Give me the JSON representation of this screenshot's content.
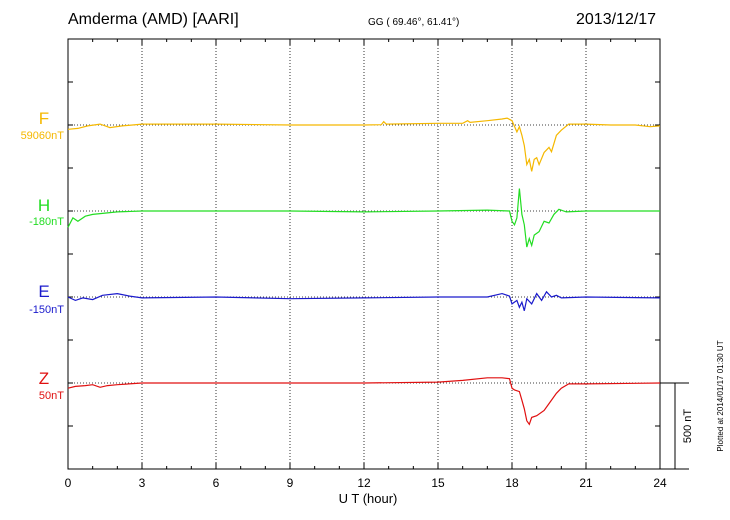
{
  "header": {
    "station": "Amderma (AMD)  [AARI]",
    "coords": "GG ( 69.46°,  61.41°)",
    "date": "2013/12/17"
  },
  "footer": {
    "plotted": "Plotted at 2014/01/17 01:30 UT"
  },
  "scale_bar_label": "500 nT",
  "colors": {
    "F": "#f5b800",
    "H": "#22dd22",
    "E": "#1a1acc",
    "Z": "#e01010"
  },
  "chart_data": {
    "type": "line",
    "title": "Amderma (AMD)  [AARI]",
    "xlabel": "U T (hour)",
    "xlim": [
      0,
      24
    ],
    "x_ticks": [
      0,
      3,
      6,
      9,
      12,
      15,
      18,
      21,
      24
    ],
    "x_tick_labels": [
      "0",
      "3",
      "6",
      "9",
      "12",
      "15",
      "18",
      "21",
      "24"
    ],
    "grid": "dotted vertical at 3,6,9,12,15,18,21",
    "scale_nT": 500,
    "series": [
      {
        "name": "F",
        "baseline_label": "59060nT",
        "baseline_nT": 59060,
        "color": "#f5b800",
        "points": [
          [
            0,
            -25
          ],
          [
            0.4,
            -20
          ],
          [
            0.8,
            -5
          ],
          [
            1.3,
            5
          ],
          [
            1.7,
            -15
          ],
          [
            2.2,
            -5
          ],
          [
            3,
            5
          ],
          [
            4,
            5
          ],
          [
            6,
            5
          ],
          [
            9,
            0
          ],
          [
            12,
            0
          ],
          [
            12.7,
            2
          ],
          [
            12.8,
            20
          ],
          [
            12.9,
            5
          ],
          [
            15,
            10
          ],
          [
            16,
            10
          ],
          [
            16.2,
            25
          ],
          [
            16.3,
            15
          ],
          [
            17,
            25
          ],
          [
            17.6,
            35
          ],
          [
            17.8,
            40
          ],
          [
            18,
            25
          ],
          [
            18.2,
            -40
          ],
          [
            18.3,
            -10
          ],
          [
            18.4,
            -60
          ],
          [
            18.5,
            -120
          ],
          [
            18.6,
            -230
          ],
          [
            18.7,
            -200
          ],
          [
            18.8,
            -270
          ],
          [
            18.9,
            -200
          ],
          [
            19,
            -190
          ],
          [
            19.1,
            -230
          ],
          [
            19.3,
            -160
          ],
          [
            19.5,
            -130
          ],
          [
            19.6,
            -155
          ],
          [
            19.8,
            -60
          ],
          [
            20,
            -30
          ],
          [
            20.3,
            5
          ],
          [
            21,
            5
          ],
          [
            22,
            0
          ],
          [
            23,
            0
          ],
          [
            23.6,
            -10
          ],
          [
            24,
            -5
          ]
        ]
      },
      {
        "name": "H",
        "baseline_label": "-180nT",
        "baseline_nT": -180,
        "color": "#22dd22",
        "points": [
          [
            0,
            -95
          ],
          [
            0.2,
            -40
          ],
          [
            0.4,
            -60
          ],
          [
            0.7,
            -30
          ],
          [
            1,
            -20
          ],
          [
            2,
            -5
          ],
          [
            3,
            0
          ],
          [
            6,
            0
          ],
          [
            9,
            0
          ],
          [
            12,
            -5
          ],
          [
            15,
            0
          ],
          [
            17,
            5
          ],
          [
            17.9,
            0
          ],
          [
            18,
            -60
          ],
          [
            18.1,
            -80
          ],
          [
            18.2,
            -40
          ],
          [
            18.3,
            130
          ],
          [
            18.4,
            -20
          ],
          [
            18.5,
            -80
          ],
          [
            18.6,
            -210
          ],
          [
            18.7,
            -160
          ],
          [
            18.8,
            -200
          ],
          [
            18.9,
            -140
          ],
          [
            19.1,
            -120
          ],
          [
            19.3,
            -60
          ],
          [
            19.5,
            -70
          ],
          [
            19.7,
            -20
          ],
          [
            19.9,
            10
          ],
          [
            20.2,
            -5
          ],
          [
            21,
            0
          ],
          [
            23,
            0
          ],
          [
            24,
            0
          ]
        ]
      },
      {
        "name": "E",
        "baseline_label": "-150nT",
        "baseline_nT": -150,
        "color": "#1a1acc",
        "points": [
          [
            0,
            0
          ],
          [
            0.3,
            -20
          ],
          [
            0.6,
            -5
          ],
          [
            1,
            -15
          ],
          [
            1.4,
            10
          ],
          [
            2,
            20
          ],
          [
            2.5,
            5
          ],
          [
            3,
            -5
          ],
          [
            6,
            0
          ],
          [
            9,
            -10
          ],
          [
            12,
            -5
          ],
          [
            15,
            0
          ],
          [
            17,
            0
          ],
          [
            17.6,
            20
          ],
          [
            17.9,
            5
          ],
          [
            18,
            -40
          ],
          [
            18.2,
            -20
          ],
          [
            18.3,
            -60
          ],
          [
            18.4,
            -30
          ],
          [
            18.5,
            -80
          ],
          [
            18.6,
            -10
          ],
          [
            18.8,
            -40
          ],
          [
            19,
            20
          ],
          [
            19.2,
            -20
          ],
          [
            19.4,
            30
          ],
          [
            19.6,
            0
          ],
          [
            19.8,
            10
          ],
          [
            20,
            -5
          ],
          [
            21,
            0
          ],
          [
            24,
            -5
          ]
        ]
      },
      {
        "name": "Z",
        "baseline_label": "50nT",
        "baseline_nT": 50,
        "color": "#e01010",
        "points": [
          [
            0,
            -30
          ],
          [
            0.3,
            -20
          ],
          [
            0.7,
            -15
          ],
          [
            1,
            -10
          ],
          [
            1.3,
            -25
          ],
          [
            1.6,
            -15
          ],
          [
            2,
            -10
          ],
          [
            3,
            0
          ],
          [
            6,
            0
          ],
          [
            9,
            0
          ],
          [
            12,
            0
          ],
          [
            15,
            5
          ],
          [
            16,
            15
          ],
          [
            17,
            30
          ],
          [
            17.6,
            30
          ],
          [
            17.9,
            25
          ],
          [
            18,
            -30
          ],
          [
            18.1,
            -40
          ],
          [
            18.3,
            -50
          ],
          [
            18.4,
            -100
          ],
          [
            18.5,
            -150
          ],
          [
            18.6,
            -220
          ],
          [
            18.7,
            -240
          ],
          [
            18.8,
            -200
          ],
          [
            19,
            -190
          ],
          [
            19.3,
            -160
          ],
          [
            19.5,
            -120
          ],
          [
            19.8,
            -60
          ],
          [
            20,
            -30
          ],
          [
            20.3,
            -5
          ],
          [
            21,
            -5
          ],
          [
            24,
            0
          ]
        ]
      }
    ]
  }
}
